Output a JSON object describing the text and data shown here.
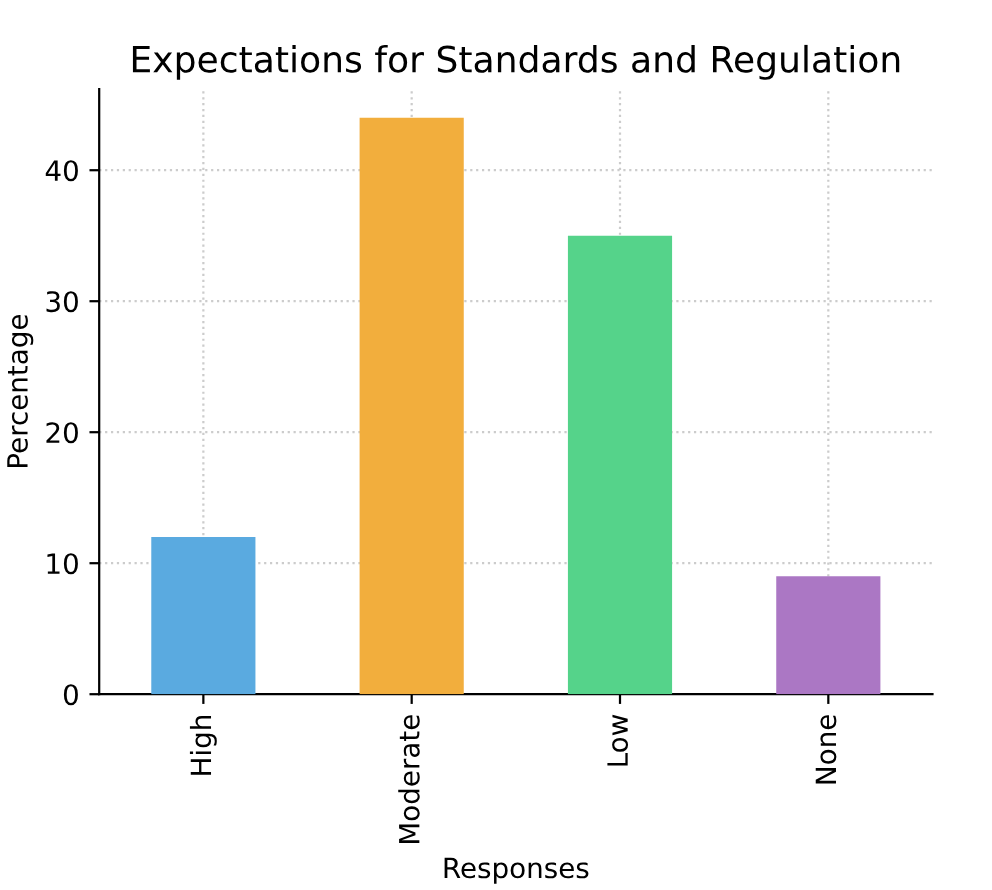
{
  "chart_data": {
    "type": "bar",
    "title": "Expectations for Standards and Regulation",
    "xlabel": "Responses",
    "ylabel": "Percentage",
    "categories": [
      "High",
      "Moderate",
      "Low",
      "None"
    ],
    "values": [
      12,
      44,
      35,
      9
    ],
    "colors": [
      "#5aaae0",
      "#f2ae3d",
      "#55d38a",
      "#ab77c4"
    ],
    "ylim": [
      0,
      46.2
    ],
    "yticks": [
      0,
      10,
      20,
      30,
      40
    ],
    "grid": true
  }
}
